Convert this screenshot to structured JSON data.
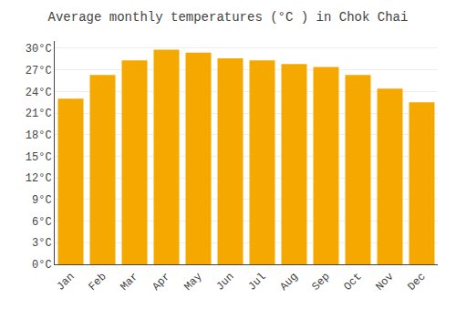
{
  "chart_data": {
    "type": "bar",
    "title": "Average monthly temperatures (°C ) in Chok Chai",
    "categories": [
      "Jan",
      "Feb",
      "Mar",
      "Apr",
      "May",
      "Jun",
      "Jul",
      "Aug",
      "Sep",
      "Oct",
      "Nov",
      "Dec"
    ],
    "values": [
      23.0,
      26.3,
      28.3,
      29.8,
      29.4,
      28.6,
      28.3,
      27.8,
      27.4,
      26.3,
      24.4,
      22.5
    ],
    "color": "#F5A800",
    "ylim": [
      0,
      31
    ],
    "yticks": [
      {
        "value": 0,
        "label": "0°C"
      },
      {
        "value": 3,
        "label": "3°C"
      },
      {
        "value": 6,
        "label": "6°C"
      },
      {
        "value": 9,
        "label": "9°C"
      },
      {
        "value": 12,
        "label": "12°C"
      },
      {
        "value": 15,
        "label": "15°C"
      },
      {
        "value": 18,
        "label": "18°C"
      },
      {
        "value": 21,
        "label": "21°C"
      },
      {
        "value": 24,
        "label": "24°C"
      },
      {
        "value": 27,
        "label": "27°C"
      },
      {
        "value": 30,
        "label": "30°C"
      }
    ],
    "grid": true
  }
}
